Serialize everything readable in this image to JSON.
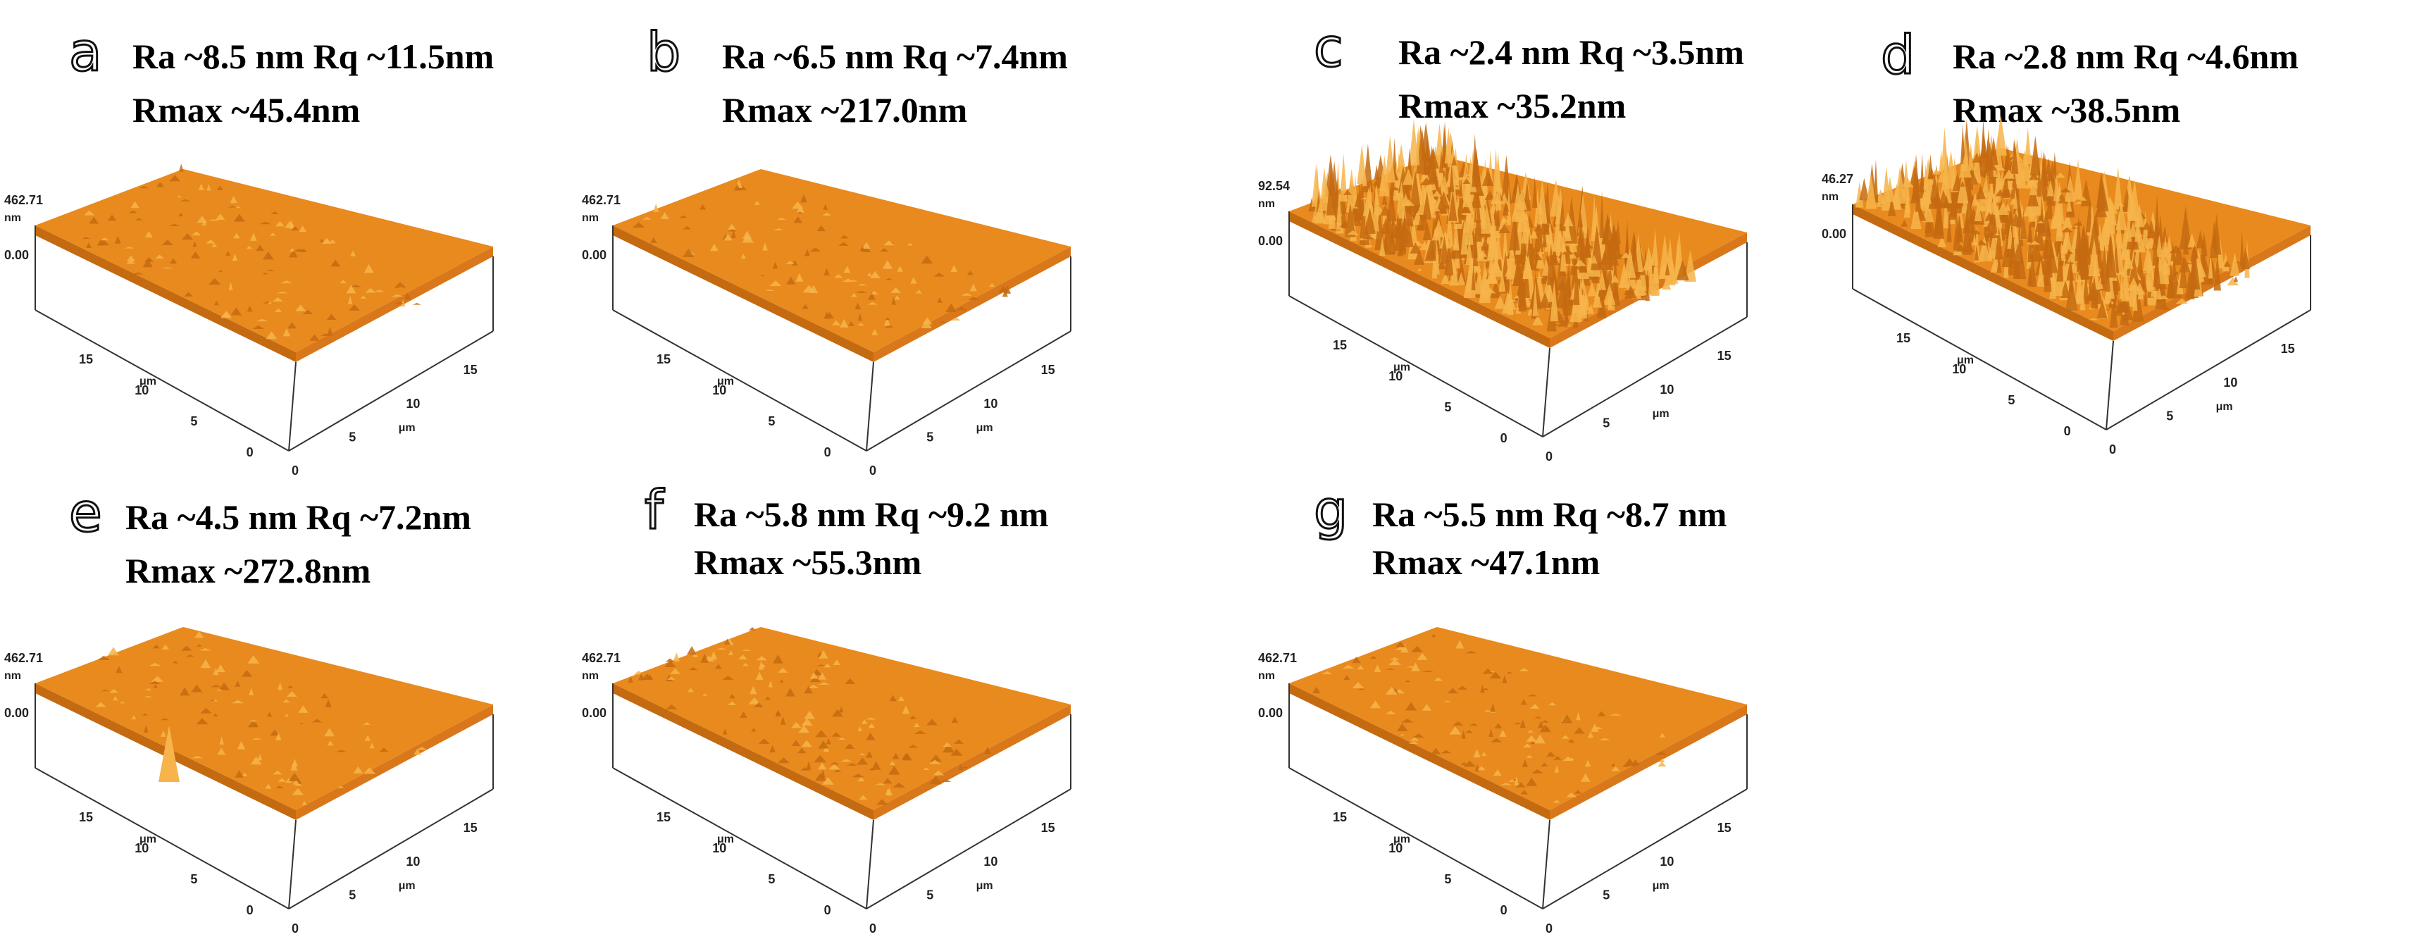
{
  "colors": {
    "surface_light": "#f6b44a",
    "surface_mid": "#e88a1e",
    "surface_dark": "#c46a10",
    "side": "#d9781a",
    "axis": "#333333"
  },
  "panels": [
    {
      "id": "a",
      "letter": "a",
      "ra_rq": "Ra ~8.5 nm Rq ~11.5nm",
      "rmax": "Rmax ~45.4nm",
      "zmax": "462.71",
      "zunit": "nm",
      "zmin": "0.00",
      "xticks": [
        "0",
        "5",
        "10",
        "15"
      ],
      "yticks": [
        "0",
        "5",
        "10",
        "15"
      ],
      "xunit": "μm",
      "yunit": "μm",
      "roughness": 0.08
    },
    {
      "id": "b",
      "letter": "b",
      "ra_rq": "Ra ~6.5 nm Rq ~7.4nm",
      "rmax": "Rmax ~217.0nm",
      "zmax": "462.71",
      "zunit": "nm",
      "zmin": "0.00",
      "xticks": [
        "0",
        "5",
        "10",
        "15"
      ],
      "yticks": [
        "0",
        "5",
        "10",
        "15"
      ],
      "xunit": "μm",
      "yunit": "μm",
      "roughness": 0.07
    },
    {
      "id": "c",
      "letter": "c",
      "ra_rq": "Ra ~2.4 nm  Rq ~3.5nm",
      "rmax": "Rmax ~35.2nm",
      "zmax": "92.54",
      "zunit": "nm",
      "zmin": "0.00",
      "xticks": [
        "0",
        "5",
        "10",
        "15"
      ],
      "yticks": [
        "0",
        "5",
        "10",
        "15"
      ],
      "xunit": "μm",
      "yunit": "μm",
      "roughness": 0.9
    },
    {
      "id": "d",
      "letter": "d",
      "ra_rq": "Ra ~2.8 nm  Rq ~4.6nm",
      "rmax": "Rmax ~38.5nm",
      "zmax": "46.27",
      "zunit": "nm",
      "zmin": "0.00",
      "xticks": [
        "0",
        "5",
        "10",
        "15"
      ],
      "yticks": [
        "0",
        "5",
        "10",
        "15"
      ],
      "xunit": "μm",
      "yunit": "μm",
      "roughness": 0.75
    },
    {
      "id": "e",
      "letter": "e",
      "ra_rq": "Ra ~4.5 nm  Rq ~7.2nm",
      "rmax": "Rmax ~272.8nm",
      "zmax": "462.71",
      "zunit": "nm",
      "zmin": "0.00",
      "xticks": [
        "0",
        "5",
        "10",
        "15"
      ],
      "yticks": [
        "0",
        "5",
        "10",
        "15"
      ],
      "xunit": "μm",
      "yunit": "μm",
      "roughness": 0.05
    },
    {
      "id": "f",
      "letter": "f",
      "ra_rq": "Ra ~5.8 nm  Rq ~9.2 nm",
      "rmax": "Rmax ~55.3nm",
      "zmax": "462.71",
      "zunit": "nm",
      "zmin": "0.00",
      "xticks": [
        "0",
        "5",
        "10",
        "15"
      ],
      "yticks": [
        "0",
        "5",
        "10",
        "15"
      ],
      "xunit": "μm",
      "yunit": "μm",
      "roughness": 0.12
    },
    {
      "id": "g",
      "letter": "g",
      "ra_rq": "Ra ~5.5 nm  Rq ~8.7 nm",
      "rmax": "Rmax ~47.1nm",
      "zmax": "462.71",
      "zunit": "nm",
      "zmin": "0.00",
      "xticks": [
        "0",
        "5",
        "10",
        "15"
      ],
      "yticks": [
        "0",
        "5",
        "10",
        "15"
      ],
      "xunit": "μm",
      "yunit": "μm",
      "roughness": 0.1
    }
  ]
}
